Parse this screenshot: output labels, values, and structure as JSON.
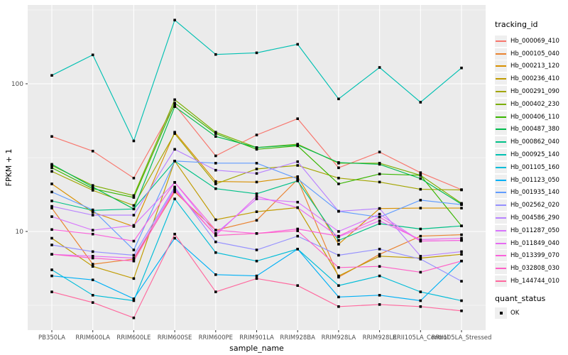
{
  "chart_data": {
    "type": "line",
    "xlabel": "sample_name",
    "ylabel": "FPKM + 1",
    "y_scale": "log10",
    "y_ticks": [
      10,
      100
    ],
    "y_minor_ticks": [
      3.162,
      31.62,
      316.2
    ],
    "ylim": [
      2.2,
      350
    ],
    "grid": true,
    "panel_bg": "#EBEBEB",
    "grid_color": "#FFFFFF",
    "marker": "black-square",
    "marker_color": "#000000",
    "legend_title": "tracking_id",
    "legend_position": "right",
    "quant_status": {
      "title": "quant_status",
      "items": [
        {
          "label": "OK",
          "marker": "black-square"
        }
      ]
    },
    "categories": [
      "PB350LA",
      "RRIM600LA",
      "RRIM600LE",
      "RRIM600SE",
      "RRIM600PE",
      "RRIM901LA",
      "RRIM928BA",
      "RRIM928LA",
      "RRIM928LE",
      "RRII105LA_Control",
      "RRII105LA_Stressed"
    ],
    "series": [
      {
        "name": "Hb_000069_410",
        "color": "#F8766D",
        "values": [
          44,
          35,
          23,
          72,
          32.5,
          45,
          58,
          27,
          34.5,
          25,
          19.2
        ]
      },
      {
        "name": "Hb_000105_040",
        "color": "#EA8331",
        "values": [
          14.4,
          6.0,
          6.5,
          18.5,
          10.2,
          11.9,
          22.5,
          4.9,
          7.0,
          9.3,
          9.5
        ]
      },
      {
        "name": "Hb_000213_120",
        "color": "#D89000",
        "values": [
          21,
          13.5,
          10.8,
          47,
          21.8,
          21.6,
          23.5,
          8.2,
          14.3,
          14.4,
          14.4
        ]
      },
      {
        "name": "Hb_000236_410",
        "color": "#C09B00",
        "values": [
          9.0,
          5.8,
          4.8,
          30,
          12,
          13.6,
          14.5,
          5.0,
          6.8,
          6.6,
          7.0
        ]
      },
      {
        "name": "Hb_000291_090",
        "color": "#A3A500",
        "values": [
          25.5,
          19,
          15,
          46,
          21,
          26.5,
          28,
          23,
          21.6,
          19.3,
          19.1
        ]
      },
      {
        "name": "Hb_000402_230",
        "color": "#7CAE00",
        "values": [
          28,
          20.5,
          17.5,
          78,
          47,
          37,
          39,
          29,
          29,
          24,
          15.5
        ]
      },
      {
        "name": "Hb_000406_110",
        "color": "#39B600",
        "values": [
          27,
          19.5,
          17,
          74,
          46,
          36,
          38,
          21,
          24.5,
          24,
          10.9
        ]
      },
      {
        "name": "Hb_000487_380",
        "color": "#00BB4E",
        "values": [
          28.5,
          20,
          14.2,
          70,
          44,
          37,
          38.5,
          29.3,
          28.5,
          22.8,
          15.3
        ]
      },
      {
        "name": "Hb_000862_040",
        "color": "#00C087",
        "values": [
          16.1,
          13.9,
          14.2,
          30,
          19.5,
          18,
          22,
          8.7,
          11.3,
          10.4,
          10.9
        ]
      },
      {
        "name": "Hb_000925_140",
        "color": "#00C0B2",
        "values": [
          114,
          157,
          41,
          270,
          158,
          162,
          185,
          79,
          129,
          75,
          128
        ]
      },
      {
        "name": "Hb_001105_160",
        "color": "#00BCD8",
        "values": [
          5.5,
          3.7,
          3.4,
          16.6,
          7.2,
          6.3,
          7.6,
          4.3,
          5.0,
          3.9,
          3.4
        ]
      },
      {
        "name": "Hb_001123_050",
        "color": "#00B0F6",
        "values": [
          5.0,
          4.7,
          3.5,
          9.0,
          5.1,
          5.0,
          7.6,
          3.6,
          3.7,
          3.4,
          6.3
        ]
      },
      {
        "name": "Hb_001935_140",
        "color": "#619CFF",
        "values": [
          18.5,
          14,
          7.5,
          30,
          29,
          29,
          22.7,
          13.7,
          12.5,
          16.3,
          15.2
        ]
      },
      {
        "name": "Hb_002562_020",
        "color": "#9590FF",
        "values": [
          8.1,
          7.3,
          6.9,
          20,
          8.5,
          7.5,
          9.3,
          6.9,
          7.6,
          6.5,
          4.6
        ]
      },
      {
        "name": "Hb_004586_290",
        "color": "#B983FF",
        "values": [
          14.8,
          12.9,
          12.9,
          36,
          26,
          24.7,
          29.7,
          13.7,
          14.3,
          6.8,
          7.3
        ]
      },
      {
        "name": "Hb_011287_050",
        "color": "#D874FD",
        "values": [
          12.6,
          10.2,
          11.0,
          21.5,
          9.7,
          16.6,
          15.8,
          10.0,
          13.1,
          8.6,
          8.7
        ]
      },
      {
        "name": "Hb_011849_040",
        "color": "#E76BF3",
        "values": [
          7.0,
          6.8,
          6.6,
          19.4,
          9.4,
          17.3,
          14.5,
          9.2,
          11.8,
          8.8,
          9.0
        ]
      },
      {
        "name": "Hb_013399_070",
        "color": "#FA62DB",
        "values": [
          10.3,
          9.6,
          8.6,
          21.5,
          10.2,
          9.7,
          10.4,
          9.3,
          12.5,
          8.6,
          8.7
        ]
      },
      {
        "name": "Hb_032808_030",
        "color": "#FF61C7",
        "values": [
          7.0,
          6.6,
          6.3,
          19,
          9.4,
          9.7,
          10.1,
          5.7,
          5.8,
          5.3,
          6.3
        ]
      },
      {
        "name": "Hb_144744_010",
        "color": "#FF689E",
        "values": [
          3.9,
          3.3,
          2.6,
          9.6,
          3.9,
          4.8,
          4.3,
          3.1,
          3.2,
          3.1,
          2.9
        ]
      }
    ]
  }
}
